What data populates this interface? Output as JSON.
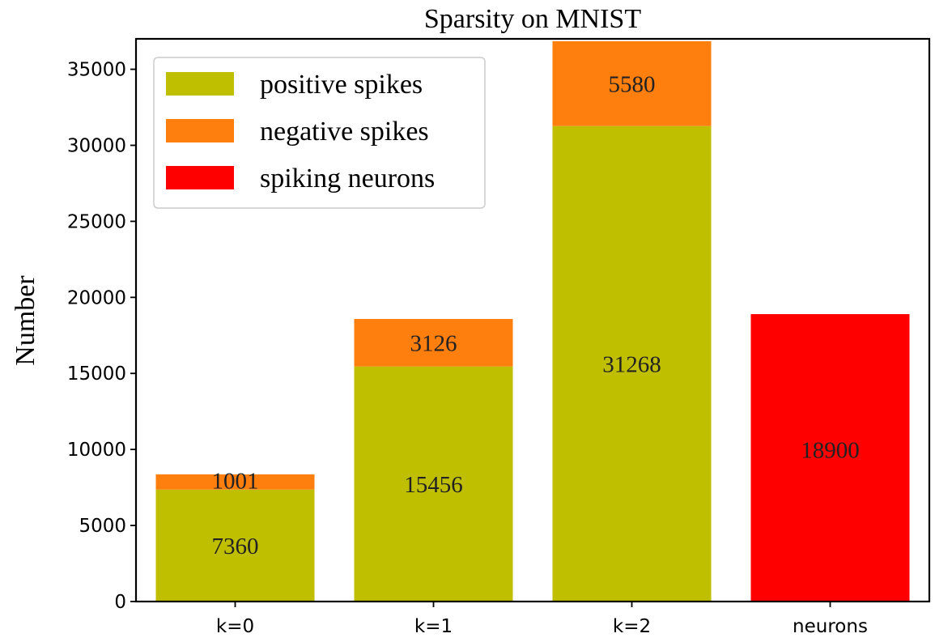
{
  "chart_data": {
    "type": "bar",
    "title": "Sparsity on MNIST",
    "xlabel": "",
    "ylabel": "Number",
    "ylim": [
      0,
      37000
    ],
    "yticks": [
      0,
      5000,
      10000,
      15000,
      20000,
      25000,
      30000,
      35000
    ],
    "categories": [
      "k=0",
      "k=1",
      "k=2",
      "neurons"
    ],
    "stacked": true,
    "series": [
      {
        "name": "positive spikes",
        "color": "#bfbf00",
        "values": [
          7360,
          15456,
          31268,
          null
        ]
      },
      {
        "name": "negative spikes",
        "color": "#ff7f0e",
        "values": [
          1001,
          3126,
          5580,
          null
        ]
      },
      {
        "name": "spiking neurons",
        "color": "#ff0000",
        "values": [
          null,
          null,
          null,
          18900
        ]
      }
    ],
    "data_labels": [
      [
        "7360",
        "15456",
        "31268",
        ""
      ],
      [
        "1001",
        "3126",
        "5580",
        ""
      ],
      [
        "",
        "",
        "",
        "18900"
      ]
    ],
    "legend_position": "top-left",
    "grid": false
  }
}
